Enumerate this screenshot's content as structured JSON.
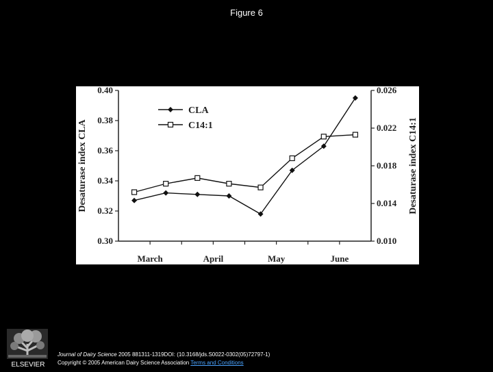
{
  "figure_title": "Figure 6",
  "chart_data": {
    "type": "line",
    "categories": [
      "March",
      "April",
      "May",
      "June"
    ],
    "left_axis": {
      "label": "Desaturase index CLA",
      "min": 0.3,
      "max": 0.4,
      "ticks": [
        "0.30",
        "0.32",
        "0.34",
        "0.36",
        "0.38",
        "0.40"
      ]
    },
    "right_axis": {
      "label": "Desaturase index C14:1",
      "min": 0.01,
      "max": 0.026,
      "ticks": [
        "0.010",
        "0.014",
        "0.018",
        "0.022",
        "0.026"
      ]
    },
    "series": [
      {
        "name": "CLA",
        "axis": "left",
        "marker": "diamond",
        "x": [
          0.5,
          1.5,
          2.5,
          3.5,
          4.5,
          5.5,
          6.5,
          7.5
        ],
        "values": [
          0.327,
          0.332,
          0.331,
          0.33,
          0.318,
          0.347,
          0.363,
          0.395
        ]
      },
      {
        "name": "C14:1",
        "axis": "right",
        "marker": "square",
        "x": [
          0.5,
          1.5,
          2.5,
          3.5,
          4.5,
          5.5,
          6.5,
          7.5
        ],
        "values": [
          0.0152,
          0.0161,
          0.0167,
          0.0161,
          0.0157,
          0.0188,
          0.0211,
          0.0213
        ]
      }
    ],
    "legend_position": "top-left",
    "grid": false
  },
  "citation": {
    "journal": "Journal of Dairy Science",
    "details": " 2005 881311-1319DOI: (10.3168/jds.S0022-0302(05)72797-1)",
    "copyright": "Copyright © 2005 American Dairy Science Association",
    "link": "Terms and Conditions"
  },
  "publisher_logo": {
    "icon": "elsevier-tree-icon",
    "text": "ELSEVIER"
  }
}
